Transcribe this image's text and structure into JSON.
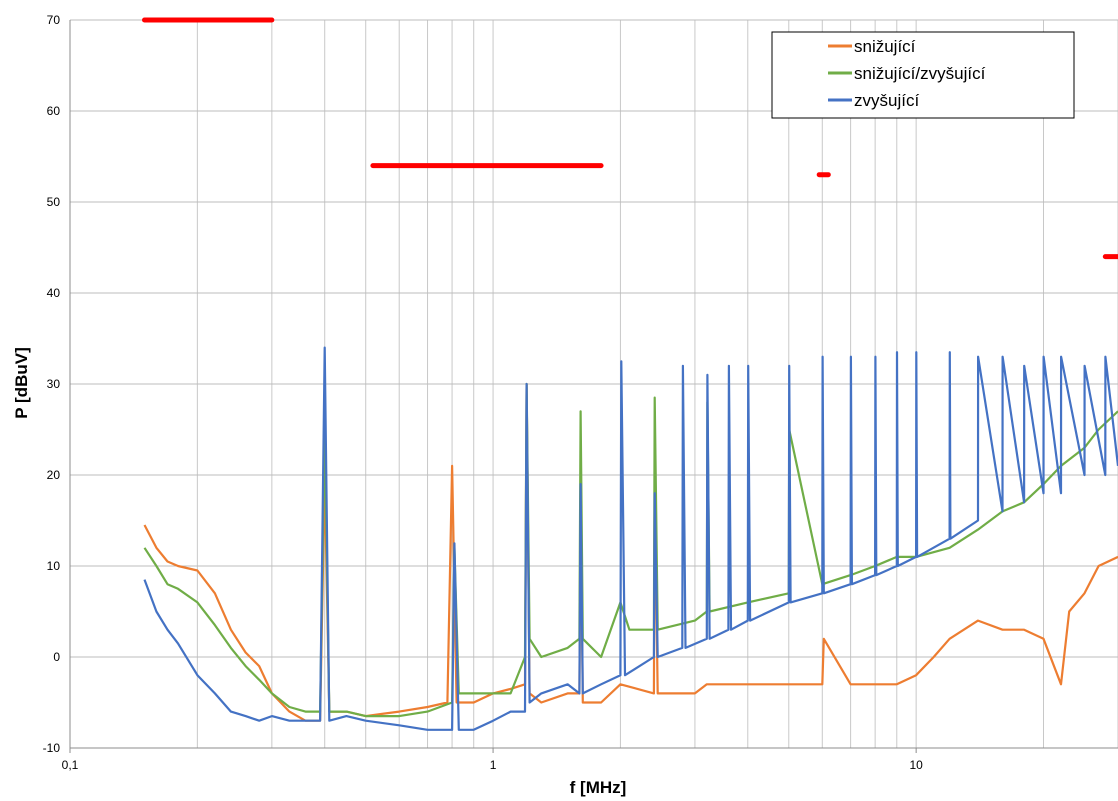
{
  "chart_data": {
    "type": "line",
    "title": "",
    "xlabel": "f [MHz]",
    "ylabel": "P [dBuV]",
    "x_scale": "log",
    "xlim": [
      0.1,
      30
    ],
    "ylim": [
      -10,
      70
    ],
    "grid": true,
    "legend_position": "top-right",
    "x_tick_labels": [
      {
        "value": 0.1,
        "label": "0,1"
      },
      {
        "value": 1,
        "label": "1"
      },
      {
        "value": 10,
        "label": "10"
      }
    ],
    "y_tick_labels": [
      "-10",
      "0",
      "10",
      "20",
      "30",
      "40",
      "50",
      "60",
      "70"
    ],
    "limit_lines": {
      "color": "#ff0000",
      "segments": [
        {
          "x": [
            0.15,
            0.3
          ],
          "y": 70
        },
        {
          "x": [
            0.52,
            1.8
          ],
          "y": 54
        },
        {
          "x": [
            5.9,
            6.2
          ],
          "y": 53
        },
        {
          "x": [
            28,
            30
          ],
          "y": 44
        }
      ]
    },
    "series": [
      {
        "name": "snižující",
        "color": "#ed7d31",
        "points": [
          [
            0.15,
            14.5
          ],
          [
            0.16,
            12
          ],
          [
            0.17,
            10.5
          ],
          [
            0.18,
            10
          ],
          [
            0.2,
            9.5
          ],
          [
            0.22,
            7
          ],
          [
            0.24,
            3
          ],
          [
            0.26,
            0.5
          ],
          [
            0.28,
            -1
          ],
          [
            0.3,
            -4
          ],
          [
            0.33,
            -6
          ],
          [
            0.36,
            -7
          ],
          [
            0.39,
            -7
          ],
          [
            0.4,
            20
          ],
          [
            0.41,
            -6
          ],
          [
            0.45,
            -6
          ],
          [
            0.5,
            -6.5
          ],
          [
            0.6,
            -6
          ],
          [
            0.7,
            -5.5
          ],
          [
            0.78,
            -5
          ],
          [
            0.8,
            21
          ],
          [
            0.82,
            -5
          ],
          [
            0.9,
            -5
          ],
          [
            1.0,
            -4
          ],
          [
            1.1,
            -3.5
          ],
          [
            1.19,
            -3
          ],
          [
            1.2,
            30
          ],
          [
            1.22,
            -4
          ],
          [
            1.3,
            -5
          ],
          [
            1.5,
            -4
          ],
          [
            1.6,
            -4
          ],
          [
            1.61,
            19
          ],
          [
            1.63,
            -5
          ],
          [
            1.8,
            -5
          ],
          [
            2.0,
            -3
          ],
          [
            2.4,
            -4
          ],
          [
            2.41,
            19
          ],
          [
            2.45,
            -4
          ],
          [
            3,
            -4
          ],
          [
            3.2,
            -3
          ],
          [
            4,
            -3
          ],
          [
            5,
            -3
          ],
          [
            6,
            -3
          ],
          [
            6.05,
            2
          ],
          [
            7,
            -3
          ],
          [
            8,
            -3
          ],
          [
            9,
            -3
          ],
          [
            10,
            -2
          ],
          [
            11,
            0
          ],
          [
            12,
            2
          ],
          [
            14,
            4
          ],
          [
            16,
            3
          ],
          [
            18,
            3
          ],
          [
            20,
            2
          ],
          [
            22,
            -3
          ],
          [
            23,
            5
          ],
          [
            25,
            7
          ],
          [
            27,
            10
          ],
          [
            30,
            11
          ]
        ]
      },
      {
        "name": "snižující/zvyšující",
        "color": "#70ad47",
        "points": [
          [
            0.15,
            12
          ],
          [
            0.16,
            10
          ],
          [
            0.17,
            8
          ],
          [
            0.18,
            7.5
          ],
          [
            0.2,
            6
          ],
          [
            0.22,
            3.5
          ],
          [
            0.24,
            1
          ],
          [
            0.26,
            -1
          ],
          [
            0.28,
            -2.5
          ],
          [
            0.3,
            -4
          ],
          [
            0.33,
            -5.5
          ],
          [
            0.36,
            -6
          ],
          [
            0.39,
            -6
          ],
          [
            0.4,
            25.5
          ],
          [
            0.41,
            -6
          ],
          [
            0.45,
            -6
          ],
          [
            0.5,
            -6.5
          ],
          [
            0.6,
            -6.5
          ],
          [
            0.7,
            -6
          ],
          [
            0.8,
            -5
          ],
          [
            0.81,
            12
          ],
          [
            0.83,
            -4
          ],
          [
            0.9,
            -4
          ],
          [
            1.0,
            -4
          ],
          [
            1.1,
            -4
          ],
          [
            1.19,
            0
          ],
          [
            1.2,
            30
          ],
          [
            1.22,
            2
          ],
          [
            1.3,
            0
          ],
          [
            1.5,
            1
          ],
          [
            1.6,
            2
          ],
          [
            1.61,
            27
          ],
          [
            1.63,
            2
          ],
          [
            1.8,
            0
          ],
          [
            2.0,
            6
          ],
          [
            2.1,
            3
          ],
          [
            2.4,
            3
          ],
          [
            2.41,
            28.5
          ],
          [
            2.45,
            3
          ],
          [
            3,
            4
          ],
          [
            3.2,
            5
          ],
          [
            3.21,
            28
          ],
          [
            3.25,
            5
          ],
          [
            4,
            6
          ],
          [
            5,
            7
          ],
          [
            5.01,
            25
          ],
          [
            6,
            8
          ],
          [
            7,
            9
          ],
          [
            8,
            10
          ],
          [
            9,
            11
          ],
          [
            10,
            11
          ],
          [
            12,
            12
          ],
          [
            14,
            14
          ],
          [
            16,
            16
          ],
          [
            18,
            17
          ],
          [
            20,
            19
          ],
          [
            22,
            21
          ],
          [
            25,
            23
          ],
          [
            27,
            25
          ],
          [
            30,
            27
          ]
        ]
      },
      {
        "name": "zvyšující",
        "color": "#4472c4",
        "points": [
          [
            0.15,
            8.5
          ],
          [
            0.16,
            5
          ],
          [
            0.17,
            3
          ],
          [
            0.18,
            1.5
          ],
          [
            0.2,
            -2
          ],
          [
            0.22,
            -4
          ],
          [
            0.24,
            -6
          ],
          [
            0.26,
            -6.5
          ],
          [
            0.28,
            -7
          ],
          [
            0.3,
            -6.5
          ],
          [
            0.33,
            -7
          ],
          [
            0.36,
            -7
          ],
          [
            0.39,
            -7
          ],
          [
            0.4,
            34
          ],
          [
            0.41,
            -7
          ],
          [
            0.45,
            -6.5
          ],
          [
            0.5,
            -7
          ],
          [
            0.6,
            -7.5
          ],
          [
            0.7,
            -8
          ],
          [
            0.8,
            -8
          ],
          [
            0.81,
            12.5
          ],
          [
            0.83,
            -8
          ],
          [
            0.9,
            -8
          ],
          [
            1.0,
            -7
          ],
          [
            1.1,
            -6
          ],
          [
            1.19,
            -6
          ],
          [
            1.2,
            30
          ],
          [
            1.22,
            -5
          ],
          [
            1.3,
            -4
          ],
          [
            1.5,
            -3
          ],
          [
            1.6,
            -4
          ],
          [
            1.61,
            19
          ],
          [
            1.63,
            -4
          ],
          [
            1.8,
            -3
          ],
          [
            2.0,
            -2
          ],
          [
            2.01,
            32.5
          ],
          [
            2.05,
            -2
          ],
          [
            2.4,
            0
          ],
          [
            2.41,
            18
          ],
          [
            2.45,
            0
          ],
          [
            2.8,
            1
          ],
          [
            2.81,
            32
          ],
          [
            2.85,
            1
          ],
          [
            3.2,
            2
          ],
          [
            3.21,
            31
          ],
          [
            3.25,
            2
          ],
          [
            3.6,
            3
          ],
          [
            3.61,
            32
          ],
          [
            3.65,
            3
          ],
          [
            4,
            4
          ],
          [
            4.01,
            32
          ],
          [
            4.05,
            4
          ],
          [
            5,
            6
          ],
          [
            5.01,
            32
          ],
          [
            5.05,
            6
          ],
          [
            6,
            7
          ],
          [
            6.01,
            33
          ],
          [
            6.05,
            7
          ],
          [
            7,
            8
          ],
          [
            7.01,
            33
          ],
          [
            7.05,
            8
          ],
          [
            8,
            9
          ],
          [
            8.01,
            33
          ],
          [
            8.05,
            9
          ],
          [
            9,
            10
          ],
          [
            9.01,
            33.5
          ],
          [
            9.05,
            10
          ],
          [
            10,
            11
          ],
          [
            10.01,
            33.5
          ],
          [
            10.05,
            11
          ],
          [
            12,
            13
          ],
          [
            12.01,
            33.5
          ],
          [
            12.05,
            13
          ],
          [
            14,
            15
          ],
          [
            14.01,
            33
          ],
          [
            16,
            16
          ],
          [
            16.01,
            33
          ],
          [
            18,
            17
          ],
          [
            18.01,
            32
          ],
          [
            20,
            18
          ],
          [
            20.01,
            33
          ],
          [
            22,
            18
          ],
          [
            22.01,
            33
          ],
          [
            25,
            20
          ],
          [
            25.01,
            32
          ],
          [
            28,
            20
          ],
          [
            28.01,
            33
          ],
          [
            30,
            21
          ]
        ]
      }
    ]
  }
}
